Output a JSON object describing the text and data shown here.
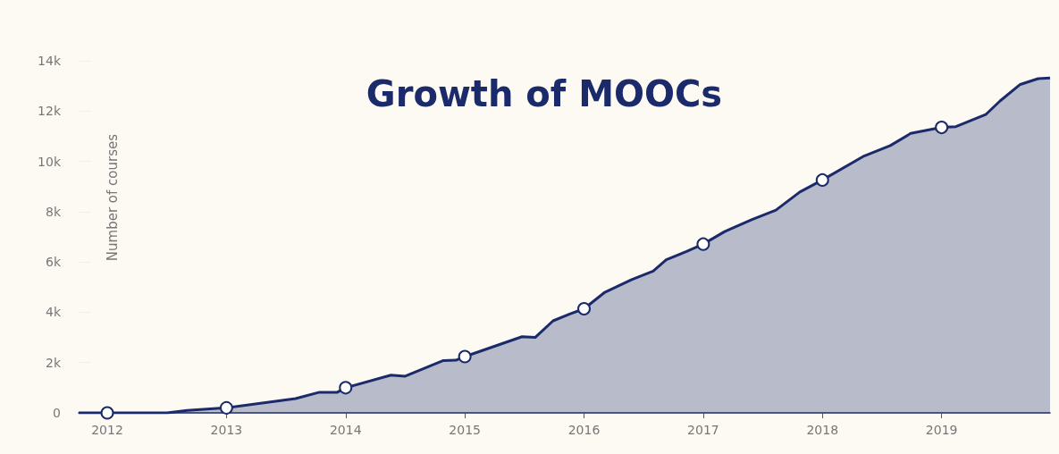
{
  "chart_data": {
    "type": "area",
    "title": "Growth of MOOCs",
    "ylabel": "Number of courses",
    "series": [
      {
        "color": "#1b2a6b",
        "x": [
          2011.76,
          2012.0,
          2012.5,
          2012.67,
          2013.0,
          2013.58,
          2013.78,
          2013.93,
          2014.0,
          2014.38,
          2014.5,
          2014.82,
          2014.93,
          2015.0,
          2015.48,
          2015.59,
          2015.74,
          2015.88,
          2016.0,
          2016.17,
          2016.4,
          2016.58,
          2016.69,
          2016.86,
          2017.0,
          2017.18,
          2017.41,
          2017.61,
          2017.81,
          2018.0,
          2018.34,
          2018.57,
          2018.74,
          2019.0,
          2019.12,
          2019.37,
          2019.49,
          2019.66,
          2019.81,
          2019.91
        ],
        "values": [
          0,
          0,
          0,
          100,
          200,
          570,
          820,
          820,
          1000,
          1500,
          1460,
          2080,
          2100,
          2240,
          3030,
          3000,
          3660,
          3930,
          4140,
          4780,
          5300,
          5640,
          6090,
          6420,
          6710,
          7210,
          7690,
          8060,
          8780,
          9260,
          10190,
          10630,
          11110,
          11350,
          11380,
          11860,
          12400,
          13060,
          13290,
          13320
        ]
      },
      {
        "type": "scatter",
        "color": "#ffffff",
        "marker": "circle",
        "x": [
          2012,
          2013,
          2014,
          2015,
          2016,
          2017,
          2018,
          2019
        ],
        "values": [
          0,
          200,
          1000,
          2240,
          4140,
          6710,
          9260,
          11350
        ]
      }
    ],
    "xlim": [
      2011.76,
      2019.91
    ],
    "xticks": [
      2012,
      2013,
      2014,
      2015,
      2016,
      2017,
      2018,
      2019
    ],
    "ylim": [
      0,
      14000
    ],
    "yticks": [
      0,
      {
        "value": 2000,
        "label": "2k"
      },
      {
        "value": 4000,
        "label": "4k"
      },
      {
        "value": 6000,
        "label": "6k"
      },
      {
        "value": 8000,
        "label": "8k"
      },
      {
        "value": 10000,
        "label": "10k"
      },
      {
        "value": 12000,
        "label": "12k"
      },
      {
        "value": 14000,
        "label": "14k"
      }
    ],
    "grid": false
  }
}
